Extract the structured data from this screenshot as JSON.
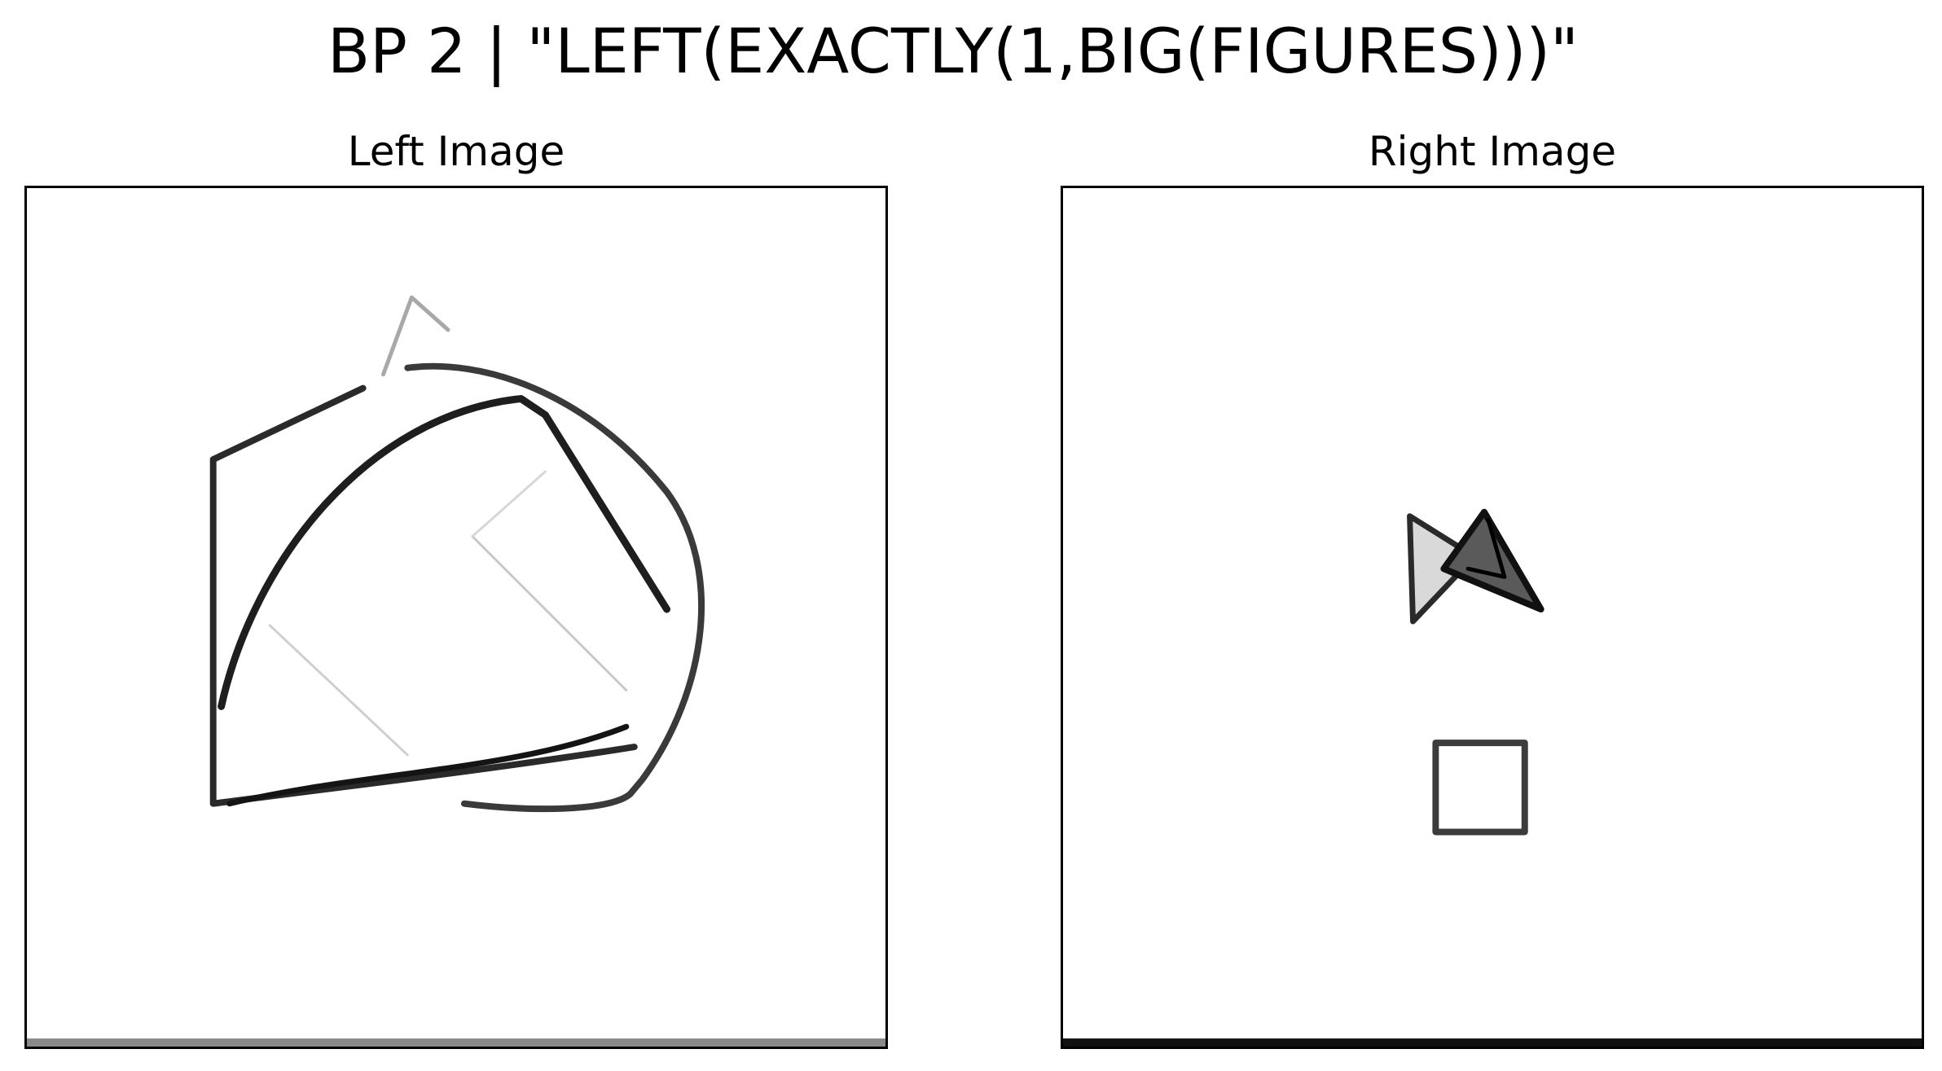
{
  "figure": {
    "title": "BP 2 | \"LEFT(EXACTLY(1,BIG(FIGURES)))\""
  },
  "panels": {
    "left": {
      "title": "Left Image",
      "content": "one large hand-drawn outline figure",
      "bottom_edge_color": "#8a8a8a"
    },
    "right": {
      "title": "Right Image",
      "content": "two small hand-drawn figures",
      "bottom_edge_color": "#111111"
    }
  },
  "colors": {
    "background": "#ffffff",
    "ink": "#1a1a1a",
    "frame": "#000000"
  }
}
